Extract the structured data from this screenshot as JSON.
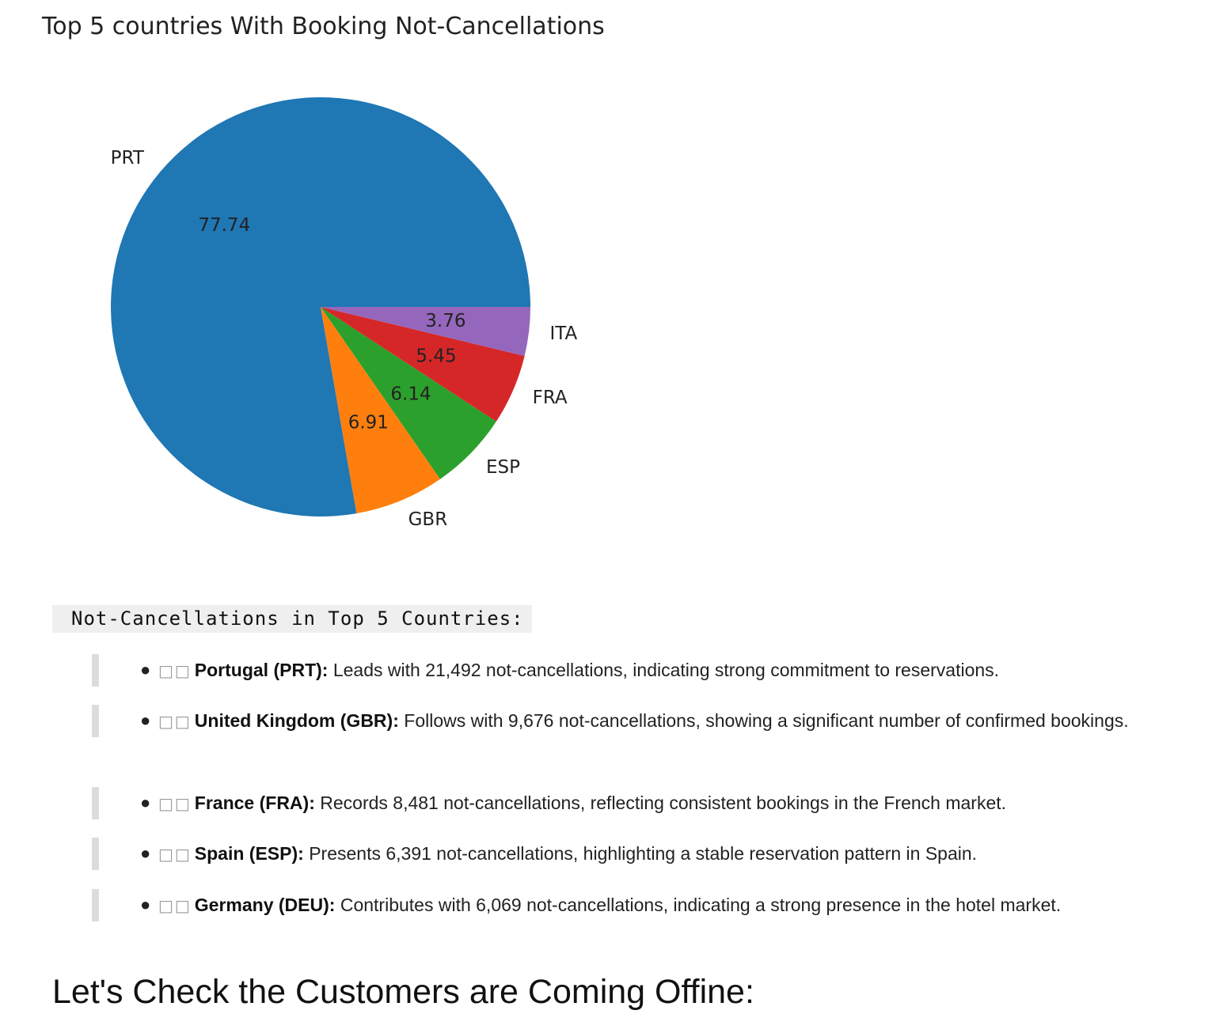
{
  "chart_data": {
    "type": "pie",
    "title": "Top 5 countries With Booking Not-Cancellations",
    "labels": [
      "PRT",
      "GBR",
      "ESP",
      "FRA",
      "ITA"
    ],
    "values": [
      77.74,
      6.91,
      6.14,
      5.45,
      3.76
    ],
    "value_labels": [
      "77.74",
      "6.91",
      "6.14",
      "5.45",
      "3.76"
    ],
    "colors": [
      "#1f77b4",
      "#ff7f0e",
      "#2ca02c",
      "#d62728",
      "#9467bd"
    ],
    "start_angle_deg": 0,
    "direction": "counterclockwise"
  },
  "section": {
    "heading": "Not-Cancellations in Top 5 Countries:",
    "items": [
      {
        "flag": "□□",
        "bold": "Portugal (PRT):",
        "text": " Leads with 21,492 not-cancellations, indicating strong commitment to reservations."
      },
      {
        "flag": "□□",
        "bold": "United Kingdom (GBR):",
        "text": " Follows with 9,676 not-cancellations, showing a significant number of confirmed bookings."
      },
      {
        "flag": "□□",
        "bold": "France (FRA):",
        "text": " Records 8,481 not-cancellations, reflecting consistent bookings in the French market."
      },
      {
        "flag": "□□",
        "bold": "Spain (ESP):",
        "text": " Presents 6,391 not-cancellations, highlighting a stable reservation pattern in Spain."
      },
      {
        "flag": "□□",
        "bold": "Germany (DEU):",
        "text": " Contributes with 6,069 not-cancellations, indicating a strong presence in the hotel market."
      }
    ]
  },
  "next_heading": "Let's Check the Customers are Coming Offine:"
}
